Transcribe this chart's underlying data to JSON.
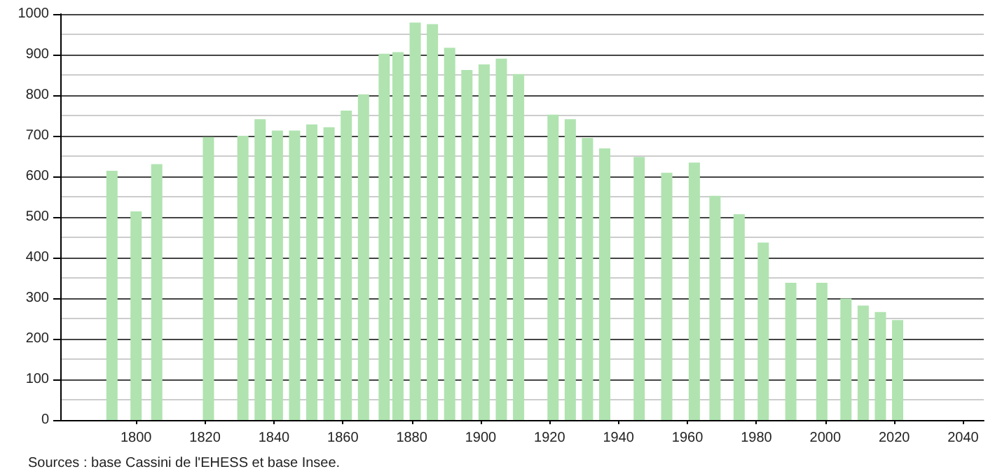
{
  "chart_data": {
    "type": "bar",
    "x": [
      1793,
      1800,
      1806,
      1821,
      1831,
      1836,
      1841,
      1846,
      1851,
      1856,
      1861,
      1866,
      1872,
      1876,
      1881,
      1886,
      1891,
      1896,
      1901,
      1906,
      1911,
      1921,
      1926,
      1931,
      1936,
      1946,
      1954,
      1962,
      1968,
      1975,
      1982,
      1990,
      1999,
      2006,
      2011,
      2016,
      2021
    ],
    "values": [
      614,
      514,
      630,
      697,
      700,
      741,
      713,
      713,
      728,
      721,
      762,
      802,
      902,
      906,
      979,
      975,
      917,
      862,
      876,
      890,
      852,
      752,
      741,
      695,
      669,
      648,
      609,
      634,
      552,
      507,
      437,
      338,
      338,
      299,
      282,
      266,
      246
    ],
    "color": "#b0e3b0",
    "xlim": [
      1778,
      2046
    ],
    "xticks": [
      1800,
      1820,
      1840,
      1860,
      1880,
      1900,
      1920,
      1940,
      1960,
      1980,
      2000,
      2020,
      2040
    ],
    "ylim": [
      0,
      1000
    ],
    "yticks": [
      0,
      100,
      200,
      300,
      400,
      500,
      600,
      700,
      800,
      900,
      1000
    ],
    "grid": "y",
    "annotations": [
      "Sources : base Cassini de l'EHESS et base Insee."
    ]
  }
}
